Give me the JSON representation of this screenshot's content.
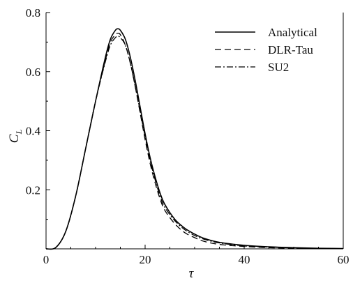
{
  "chart_data": {
    "type": "line",
    "title": "",
    "xlabel": "τ",
    "ylabel": "C",
    "ylabel_subscript": "L",
    "xlim": [
      0,
      60
    ],
    "ylim": [
      0,
      0.8
    ],
    "xticks": [
      0,
      20,
      40,
      60
    ],
    "xtick_labels": [
      "0",
      "20",
      "40",
      "60"
    ],
    "yticks": [
      0.2,
      0.4,
      0.6,
      0.8
    ],
    "ytick_labels": [
      "0.2",
      "0.4",
      "0.6",
      "0.8"
    ],
    "grid": false,
    "legend_position": "top-right",
    "series": [
      {
        "name": "Analytical",
        "line_style": "solid",
        "color": "#000000",
        "x": [
          0,
          2,
          4,
          6,
          8,
          10,
          12,
          13,
          14,
          14.5,
          15,
          16,
          17,
          18,
          19,
          20,
          21,
          22,
          23,
          24,
          26,
          28,
          30,
          32,
          35,
          40,
          45,
          50,
          55,
          60
        ],
        "y": [
          0,
          0.005,
          0.06,
          0.18,
          0.34,
          0.5,
          0.65,
          0.71,
          0.74,
          0.745,
          0.74,
          0.71,
          0.65,
          0.57,
          0.48,
          0.39,
          0.31,
          0.245,
          0.19,
          0.15,
          0.1,
          0.07,
          0.05,
          0.035,
          0.022,
          0.012,
          0.007,
          0.004,
          0.002,
          0.001
        ]
      },
      {
        "name": "DLR-Tau",
        "line_style": "dashed",
        "color": "#000000",
        "x": [
          0,
          2,
          4,
          6,
          8,
          10,
          12,
          13,
          14,
          14.5,
          15,
          16,
          17,
          18,
          19,
          20,
          21,
          22,
          23,
          24,
          26,
          28,
          30,
          32,
          35,
          40,
          45,
          50,
          55,
          60
        ],
        "y": [
          0,
          0.005,
          0.06,
          0.18,
          0.34,
          0.5,
          0.64,
          0.7,
          0.725,
          0.73,
          0.725,
          0.69,
          0.63,
          0.55,
          0.46,
          0.37,
          0.29,
          0.225,
          0.17,
          0.13,
          0.085,
          0.055,
          0.038,
          0.025,
          0.015,
          0.008,
          0.004,
          0.002,
          0.001,
          0.0005
        ]
      },
      {
        "name": "SU2",
        "line_style": "dash-dot",
        "color": "#000000",
        "x": [
          0,
          2,
          4,
          6,
          8,
          10,
          12,
          13,
          14,
          14.5,
          15,
          16,
          17,
          18,
          19,
          20,
          21,
          22,
          23,
          24,
          26,
          28,
          30,
          32,
          35,
          40,
          45,
          50,
          55,
          60
        ],
        "y": [
          0,
          0.005,
          0.06,
          0.18,
          0.34,
          0.5,
          0.635,
          0.69,
          0.715,
          0.72,
          0.715,
          0.69,
          0.63,
          0.55,
          0.465,
          0.38,
          0.3,
          0.235,
          0.18,
          0.14,
          0.095,
          0.065,
          0.045,
          0.032,
          0.02,
          0.01,
          0.006,
          0.003,
          0.0015,
          0.0008
        ]
      }
    ]
  }
}
